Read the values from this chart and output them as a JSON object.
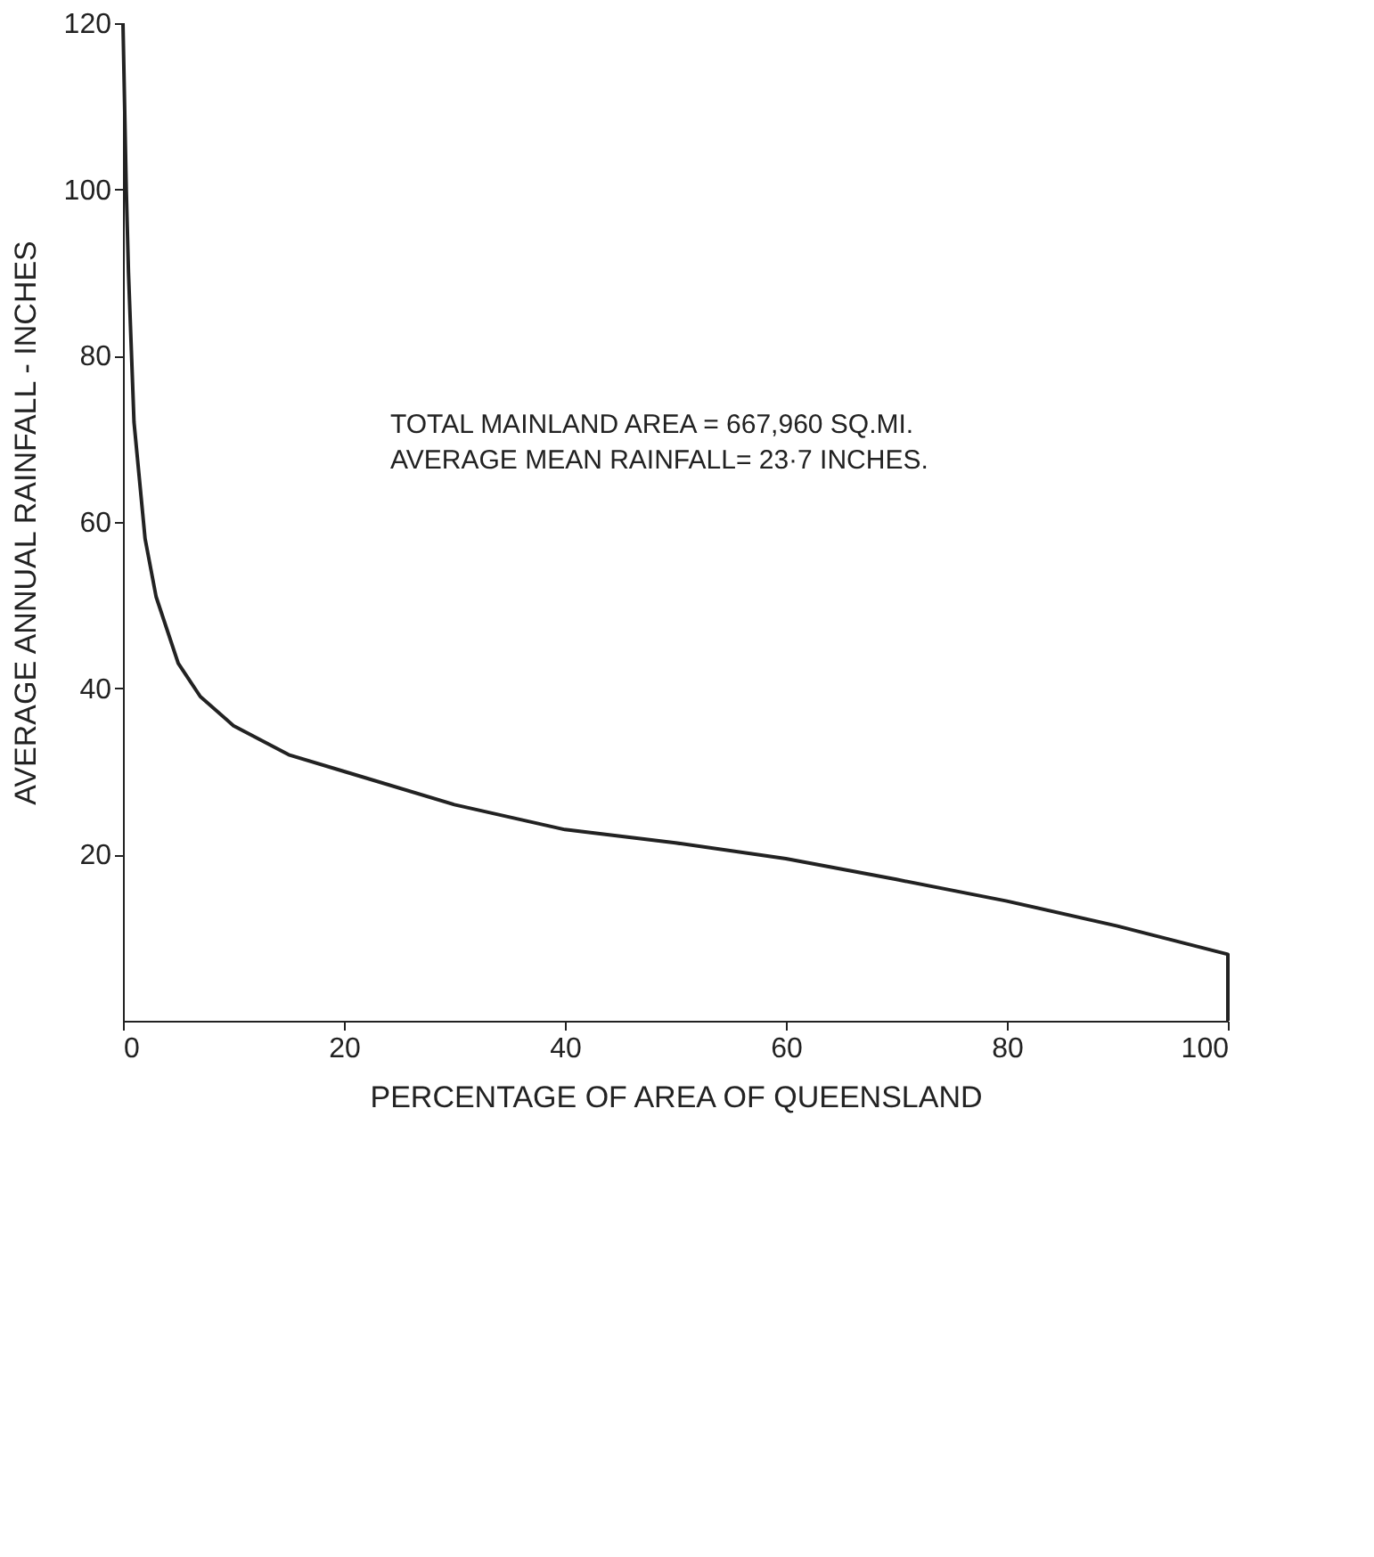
{
  "chart_data": {
    "type": "line",
    "xlabel": "PERCENTAGE OF AREA OF QUEENSLAND",
    "ylabel": "AVERAGE ANNUAL RAINFALL - INCHES",
    "x": [
      0,
      0.3,
      0.5,
      1,
      2,
      3,
      5,
      7,
      10,
      15,
      20,
      30,
      40,
      50,
      60,
      70,
      80,
      90,
      100,
      100
    ],
    "series": [
      {
        "color": "#222222",
        "values": [
          120,
          100,
          90,
          72,
          58,
          51,
          43,
          39,
          35.5,
          32,
          30,
          26,
          23,
          21.4,
          19.5,
          17,
          14.4,
          11.4,
          8,
          0
        ]
      }
    ],
    "xlim": [
      0,
      100
    ],
    "xticks": [
      0,
      20,
      40,
      60,
      80,
      100
    ],
    "ylim": [
      0,
      120
    ],
    "yticks": [
      20,
      40,
      60,
      80,
      100,
      120
    ],
    "grid": false,
    "line_style": "solid",
    "marker": "none",
    "annotations": [
      "TOTAL MAINLAND AREA = 667,960 SQ.MI.",
      "AVERAGE MEAN RAINFALL= 23·7 INCHES."
    ]
  }
}
